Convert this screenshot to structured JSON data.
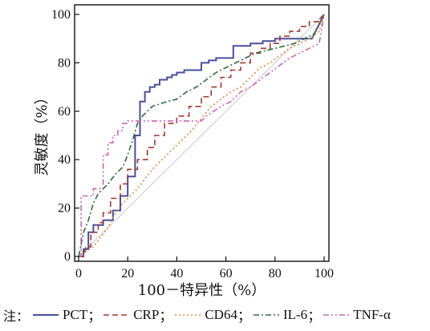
{
  "chart_data": {
    "type": "line",
    "xlabel": "100－特异性（%）",
    "ylabel": "灵敏度（%）",
    "xlim": [
      0,
      100
    ],
    "ylim": [
      0,
      100
    ],
    "xticks": [
      "0",
      "20",
      "40",
      "60",
      "80",
      "100"
    ],
    "yticks": [
      "0",
      "20",
      "40",
      "60",
      "80",
      "100"
    ],
    "grid": false,
    "legend_note": "注：",
    "legend_position": "bottom",
    "diagonal_reference": true,
    "series": [
      {
        "name": "PCT",
        "color": "#4a4f9a",
        "style": "solid",
        "x": [
          0,
          2,
          2,
          4,
          4,
          6,
          6,
          10,
          10,
          14,
          14,
          17,
          17,
          20,
          20,
          23,
          23,
          25,
          25,
          27,
          27,
          29,
          29,
          31,
          31,
          33,
          33,
          36,
          36,
          38,
          38,
          40,
          40,
          43,
          43,
          50,
          50,
          53,
          53,
          56,
          56,
          63,
          63,
          70,
          70,
          75,
          75,
          80,
          80,
          86,
          86,
          95,
          95,
          100
        ],
        "y": [
          0,
          0,
          3,
          3,
          10,
          10,
          13,
          13,
          15,
          15,
          19,
          19,
          25,
          25,
          33,
          33,
          50,
          50,
          64,
          64,
          68,
          68,
          70,
          70,
          71,
          71,
          73,
          73,
          74,
          74,
          75,
          75,
          76,
          76,
          77,
          77,
          80,
          80,
          81,
          81,
          82,
          82,
          87,
          87,
          88,
          88,
          89,
          89,
          90,
          90,
          90,
          90,
          90,
          100
        ]
      },
      {
        "name": "CRP",
        "color": "#a03a32",
        "style": "dashed",
        "x": [
          0,
          2,
          3,
          5,
          5,
          8,
          8,
          10,
          10,
          13,
          13,
          17,
          17,
          20,
          20,
          24,
          24,
          28,
          28,
          31,
          31,
          35,
          35,
          40,
          40,
          45,
          45,
          50,
          50,
          54,
          54,
          58,
          58,
          62,
          62,
          66,
          66,
          70,
          70,
          74,
          74,
          78,
          78,
          82,
          82,
          86,
          86,
          90,
          90,
          94,
          94,
          98,
          98,
          100
        ],
        "y": [
          0,
          0,
          4,
          4,
          10,
          10,
          14,
          14,
          18,
          18,
          24,
          24,
          30,
          30,
          36,
          36,
          40,
          40,
          45,
          45,
          50,
          50,
          55,
          55,
          58,
          58,
          62,
          62,
          66,
          66,
          70,
          70,
          74,
          74,
          77,
          77,
          80,
          80,
          84,
          84,
          86,
          86,
          88,
          88,
          91,
          91,
          93,
          93,
          95,
          95,
          97,
          97,
          98,
          100
        ]
      },
      {
        "name": "CD64",
        "color": "#e2893f",
        "style": "dotted",
        "x": [
          0,
          3,
          6,
          9,
          12,
          15,
          18,
          21,
          24,
          27,
          30,
          34,
          38,
          42,
          46,
          50,
          54,
          58,
          62,
          66,
          70,
          74,
          78,
          82,
          86,
          90,
          94,
          98,
          100
        ],
        "y": [
          0,
          2,
          4,
          8,
          12,
          18,
          22,
          25,
          28,
          32,
          36,
          40,
          44,
          48,
          52,
          57,
          62,
          65,
          68,
          70,
          74,
          78,
          80,
          83,
          86,
          88,
          90,
          93,
          100
        ]
      },
      {
        "name": "IL-6",
        "color": "#2f6b3a",
        "style": "dashdot",
        "x": [
          0,
          1,
          2,
          4,
          6,
          8,
          10,
          12,
          15,
          18,
          20,
          22,
          24,
          26,
          28,
          30,
          33,
          36,
          40,
          44,
          48,
          52,
          56,
          60,
          64,
          68,
          72,
          76,
          80,
          84,
          88,
          92,
          96,
          100
        ],
        "y": [
          0,
          5,
          10,
          15,
          22,
          26,
          28,
          30,
          34,
          37,
          42,
          48,
          55,
          58,
          60,
          62,
          63,
          64,
          65,
          68,
          70,
          73,
          76,
          78,
          80,
          82,
          84,
          85,
          86,
          87,
          88,
          90,
          92,
          100
        ]
      },
      {
        "name": "TNF-α",
        "color": "#c965b8",
        "style": "dashdotdot",
        "x": [
          0,
          1,
          1,
          6,
          6,
          10,
          10,
          12,
          12,
          14,
          14,
          16,
          16,
          18,
          18,
          20,
          20,
          22,
          22,
          25,
          25,
          35,
          35,
          50,
          52,
          55,
          58,
          62,
          66,
          70,
          74,
          78,
          82,
          86,
          90,
          94,
          98,
          100
        ],
        "y": [
          0,
          0,
          25,
          25,
          28,
          28,
          42,
          42,
          47,
          47,
          50,
          50,
          52,
          52,
          55,
          55,
          56,
          56,
          56,
          56,
          56,
          56,
          56,
          56,
          58,
          60,
          62,
          64,
          68,
          70,
          73,
          76,
          79,
          82,
          84,
          86,
          88,
          100
        ]
      }
    ]
  }
}
